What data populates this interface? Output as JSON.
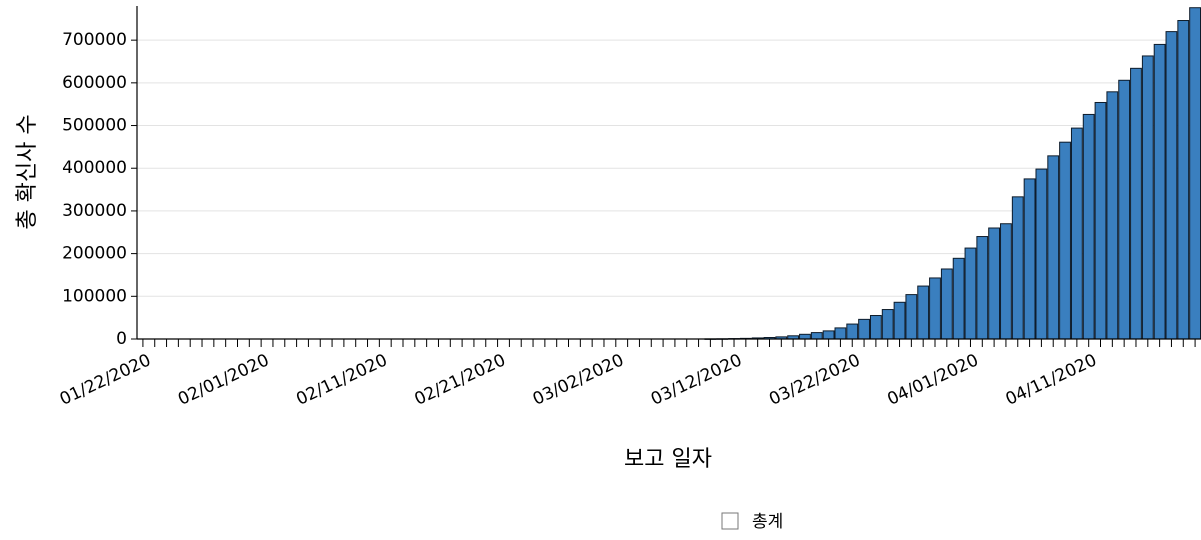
{
  "chart_data": {
    "type": "bar",
    "xlabel": "보고 일자",
    "ylabel": "총 확신사 수",
    "ylim": [
      0,
      780000
    ],
    "yticks": [
      0,
      100000,
      200000,
      300000,
      400000,
      500000,
      600000,
      700000
    ],
    "ytick_labels": [
      "0",
      "100000",
      "200000",
      "300000",
      "400000",
      "500000",
      "600000",
      "700000"
    ],
    "xtick_labels": [
      "01/22/2020",
      "02/01/2020",
      "02/11/2020",
      "02/21/2020",
      "03/02/2020",
      "03/12/2020",
      "03/22/2020",
      "04/01/2020",
      "04/11/2020"
    ],
    "bar_color": "#3a7fbf",
    "grid": true,
    "legend_position": "bottom",
    "series": [
      {
        "name": "총계",
        "categories": [
          "01/22/2020",
          "01/23/2020",
          "01/24/2020",
          "01/25/2020",
          "01/26/2020",
          "01/27/2020",
          "01/28/2020",
          "01/29/2020",
          "01/30/2020",
          "01/31/2020",
          "02/01/2020",
          "02/02/2020",
          "02/03/2020",
          "02/04/2020",
          "02/05/2020",
          "02/06/2020",
          "02/07/2020",
          "02/08/2020",
          "02/09/2020",
          "02/10/2020",
          "02/11/2020",
          "02/12/2020",
          "02/13/2020",
          "02/14/2020",
          "02/15/2020",
          "02/16/2020",
          "02/17/2020",
          "02/18/2020",
          "02/19/2020",
          "02/20/2020",
          "02/21/2020",
          "02/22/2020",
          "02/23/2020",
          "02/24/2020",
          "02/25/2020",
          "02/26/2020",
          "02/27/2020",
          "02/28/2020",
          "02/29/2020",
          "03/01/2020",
          "03/02/2020",
          "03/03/2020",
          "03/04/2020",
          "03/05/2020",
          "03/06/2020",
          "03/07/2020",
          "03/08/2020",
          "03/09/2020",
          "03/10/2020",
          "03/11/2020",
          "03/12/2020",
          "03/13/2020",
          "03/14/2020",
          "03/15/2020",
          "03/16/2020",
          "03/17/2020",
          "03/18/2020",
          "03/19/2020",
          "03/20/2020",
          "03/21/2020",
          "03/22/2020",
          "03/23/2020",
          "03/24/2020",
          "03/25/2020",
          "03/26/2020",
          "03/27/2020",
          "03/28/2020",
          "03/29/2020",
          "03/30/2020",
          "03/31/2020",
          "04/01/2020",
          "04/02/2020",
          "04/03/2020",
          "04/04/2020",
          "04/05/2020",
          "04/06/2020",
          "04/07/2020",
          "04/08/2020",
          "04/09/2020",
          "04/10/2020",
          "04/11/2020",
          "04/12/2020",
          "04/13/2020",
          "04/14/2020",
          "04/15/2020",
          "04/16/2020",
          "04/17/2020",
          "04/18/2020",
          "04/19/2020",
          "04/20/2020"
        ],
        "values": [
          0,
          0,
          0,
          0,
          0,
          0,
          0,
          0,
          0,
          0,
          0,
          0,
          0,
          0,
          0,
          0,
          0,
          0,
          0,
          0,
          0,
          0,
          0,
          0,
          0,
          0,
          0,
          0,
          0,
          0,
          0,
          0,
          0,
          0,
          0,
          0,
          0,
          0,
          0,
          0,
          0,
          0,
          0,
          0,
          0,
          0,
          0,
          0,
          300,
          500,
          1000,
          1500,
          2500,
          3500,
          5000,
          7500,
          11000,
          15000,
          19000,
          26000,
          35000,
          46000,
          55000,
          69000,
          86000,
          104000,
          124000,
          143000,
          164000,
          189000,
          213000,
          240000,
          260000,
          270000,
          333000,
          375000,
          398000,
          429000,
          461000,
          494000,
          526000,
          554000,
          579000,
          606000,
          634000,
          663000,
          690000,
          720000,
          746000,
          776000
        ]
      }
    ]
  }
}
